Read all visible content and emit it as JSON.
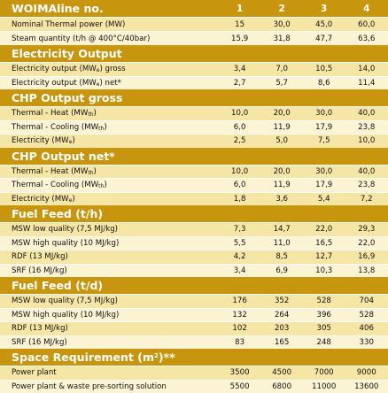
{
  "header": {
    "title": "WOIMAline no.",
    "columns": [
      "1",
      "2",
      "3",
      "4"
    ]
  },
  "top_rows": [
    {
      "label": "Nominal Thermal power (MW)",
      "values": [
        "15",
        "30,0",
        "45,0",
        "60,0"
      ]
    },
    {
      "label": "Steam quantity (t/h @ 400°C/40bar)",
      "values": [
        "15,9",
        "31,8",
        "47,7",
        "63,6"
      ]
    }
  ],
  "sections": [
    {
      "title": "Electricity Output",
      "rows": [
        {
          "label": "Electricity output (MW",
          "sub": "e",
          "suffix": ") gross",
          "values": [
            "3,4",
            "7,0",
            "10,5",
            "14,0"
          ]
        },
        {
          "label": "Electricity output (MW",
          "sub": "e",
          "suffix": ") net*",
          "values": [
            "2,7",
            "5,7",
            "8,6",
            "11,4"
          ]
        }
      ]
    },
    {
      "title": "CHP Output gross",
      "rows": [
        {
          "label": "Thermal - Heat (MW",
          "sub": "th",
          "suffix": ")",
          "values": [
            "10,0",
            "20,0",
            "30,0",
            "40,0"
          ]
        },
        {
          "label": "Thermal - Cooling (MW",
          "sub": "th",
          "suffix": ")",
          "values": [
            "6,0",
            "11,9",
            "17,9",
            "23,8"
          ]
        },
        {
          "label": "Electricity (MW",
          "sub": "e",
          "suffix": ")",
          "values": [
            "2,5",
            "5,0",
            "7,5",
            "10,0"
          ]
        }
      ]
    },
    {
      "title": "CHP Output net*",
      "rows": [
        {
          "label": "Thermal - Heat (MW",
          "sub": "th",
          "suffix": ")",
          "values": [
            "10,0",
            "20,0",
            "30,0",
            "40,0"
          ]
        },
        {
          "label": "Thermal - Cooling (MW",
          "sub": "th",
          "suffix": ")",
          "values": [
            "6,0",
            "11,9",
            "17,9",
            "23,8"
          ]
        },
        {
          "label": "Electricity (MW",
          "sub": "e",
          "suffix": ")",
          "values": [
            "1,8",
            "3,6",
            "5,4",
            "7,2"
          ]
        }
      ]
    },
    {
      "title": "Fuel Feed (t/h)",
      "rows": [
        {
          "label": "MSW low quality (7,5 MJ/kg)",
          "values": [
            "7,3",
            "14,7",
            "22,0",
            "29,3"
          ]
        },
        {
          "label": "MSW high quality (10 MJ/kg)",
          "values": [
            "5,5",
            "11,0",
            "16,5",
            "22,0"
          ]
        },
        {
          "label": "RDF (13 MJ/kg)",
          "values": [
            "4,2",
            "8,5",
            "12,7",
            "16,9"
          ]
        },
        {
          "label": "SRF (16 MJ/kg)",
          "values": [
            "3,4",
            "6,9",
            "10,3",
            "13,8"
          ]
        }
      ]
    },
    {
      "title": "Fuel Feed (t/d)",
      "rows": [
        {
          "label": "MSW low quality (7,5 MJ/kg)",
          "values": [
            "176",
            "352",
            "528",
            "704"
          ]
        },
        {
          "label": "MSW high quality (10 MJ/kg)",
          "values": [
            "132",
            "264",
            "396",
            "528"
          ]
        },
        {
          "label": "RDF (13 MJ/kg)",
          "values": [
            "102",
            "203",
            "305",
            "406"
          ]
        },
        {
          "label": "SRF (16 MJ/kg)",
          "values": [
            "83",
            "165",
            "248",
            "330"
          ]
        }
      ]
    },
    {
      "title": "Space Requirement (m",
      "title_sup": "2",
      "title_suffix": ")**",
      "rows": [
        {
          "label": "Power plant",
          "values": [
            "3500",
            "4500",
            "7000",
            "9000"
          ]
        },
        {
          "label": "Power plant & waste pre-sorting solution",
          "values": [
            "5500",
            "6800",
            "11000",
            "13600"
          ]
        }
      ]
    }
  ],
  "colors": {
    "header": "#c8960e",
    "row_light": "#fbf3d2",
    "row_dark": "#f6e6a6"
  }
}
